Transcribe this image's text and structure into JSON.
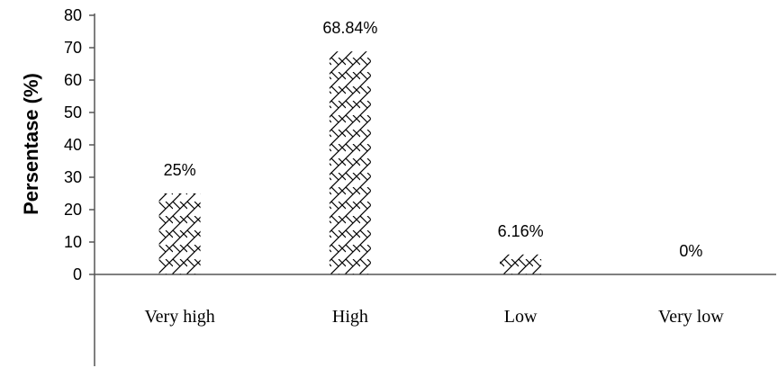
{
  "chart_data": {
    "type": "bar",
    "categories": [
      "Very high",
      "High",
      "Low",
      "Very low"
    ],
    "values": [
      25,
      68.84,
      6.16,
      0
    ],
    "data_labels": [
      "25%",
      "68.84%",
      "6.16%",
      "0%"
    ],
    "title": "",
    "xlabel": "",
    "ylabel": "Persentase (%)",
    "ylim": [
      0,
      80
    ],
    "yticks": [
      0,
      10,
      20,
      30,
      40,
      50,
      60,
      70,
      80
    ],
    "grid": false,
    "legend": "none",
    "bar_fill": "crosshatch",
    "colors": {
      "bar_stroke": "#000000",
      "axis": "#555555",
      "text": "#000000"
    }
  }
}
